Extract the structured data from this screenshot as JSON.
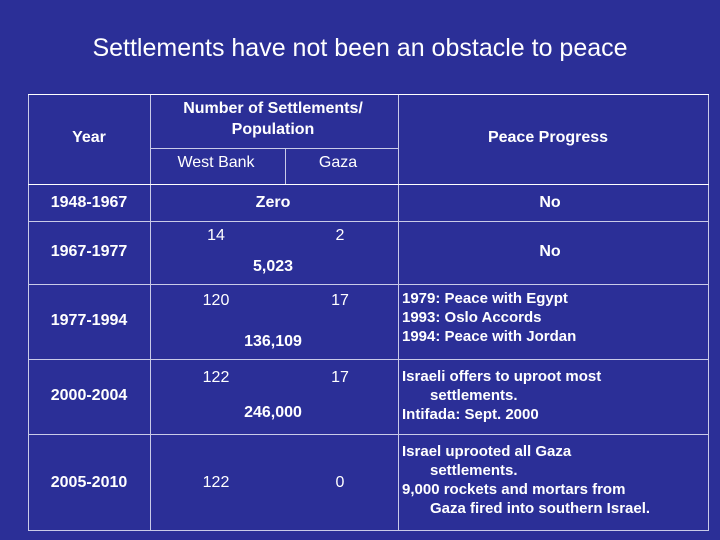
{
  "title": "Settlements have not been an obstacle to peace",
  "headers": {
    "year": "Year",
    "settlements_line1": "Number of Settlements/",
    "settlements_line2": "Population",
    "west_bank": "West Bank",
    "gaza": "Gaza",
    "peace": "Peace Progress"
  },
  "rows": [
    {
      "year": "1948-1967",
      "combined": "Zero",
      "peace": "No"
    },
    {
      "year": "1967-1977",
      "west_bank": "14",
      "gaza": "2",
      "population": "5,023",
      "peace": "No"
    },
    {
      "year": "1977-1994",
      "west_bank": "120",
      "gaza": "17",
      "population": "136,109",
      "peace_lines": [
        "1979:  Peace with Egypt",
        "1993:  Oslo Accords",
        "1994:  Peace with Jordan"
      ]
    },
    {
      "year": "2000-2004",
      "west_bank": "122",
      "gaza": "17",
      "population": "246,000",
      "peace_lines": [
        "Israeli offers to uproot most",
        "settlements.",
        "Intifada: Sept. 2000"
      ]
    },
    {
      "year": "2005-2010",
      "west_bank": "122",
      "gaza": "0",
      "peace_lines": [
        "Israel uprooted all Gaza",
        "settlements.",
        "9,000 rockets and mortars from",
        "Gaza fired into southern Israel."
      ]
    }
  ]
}
